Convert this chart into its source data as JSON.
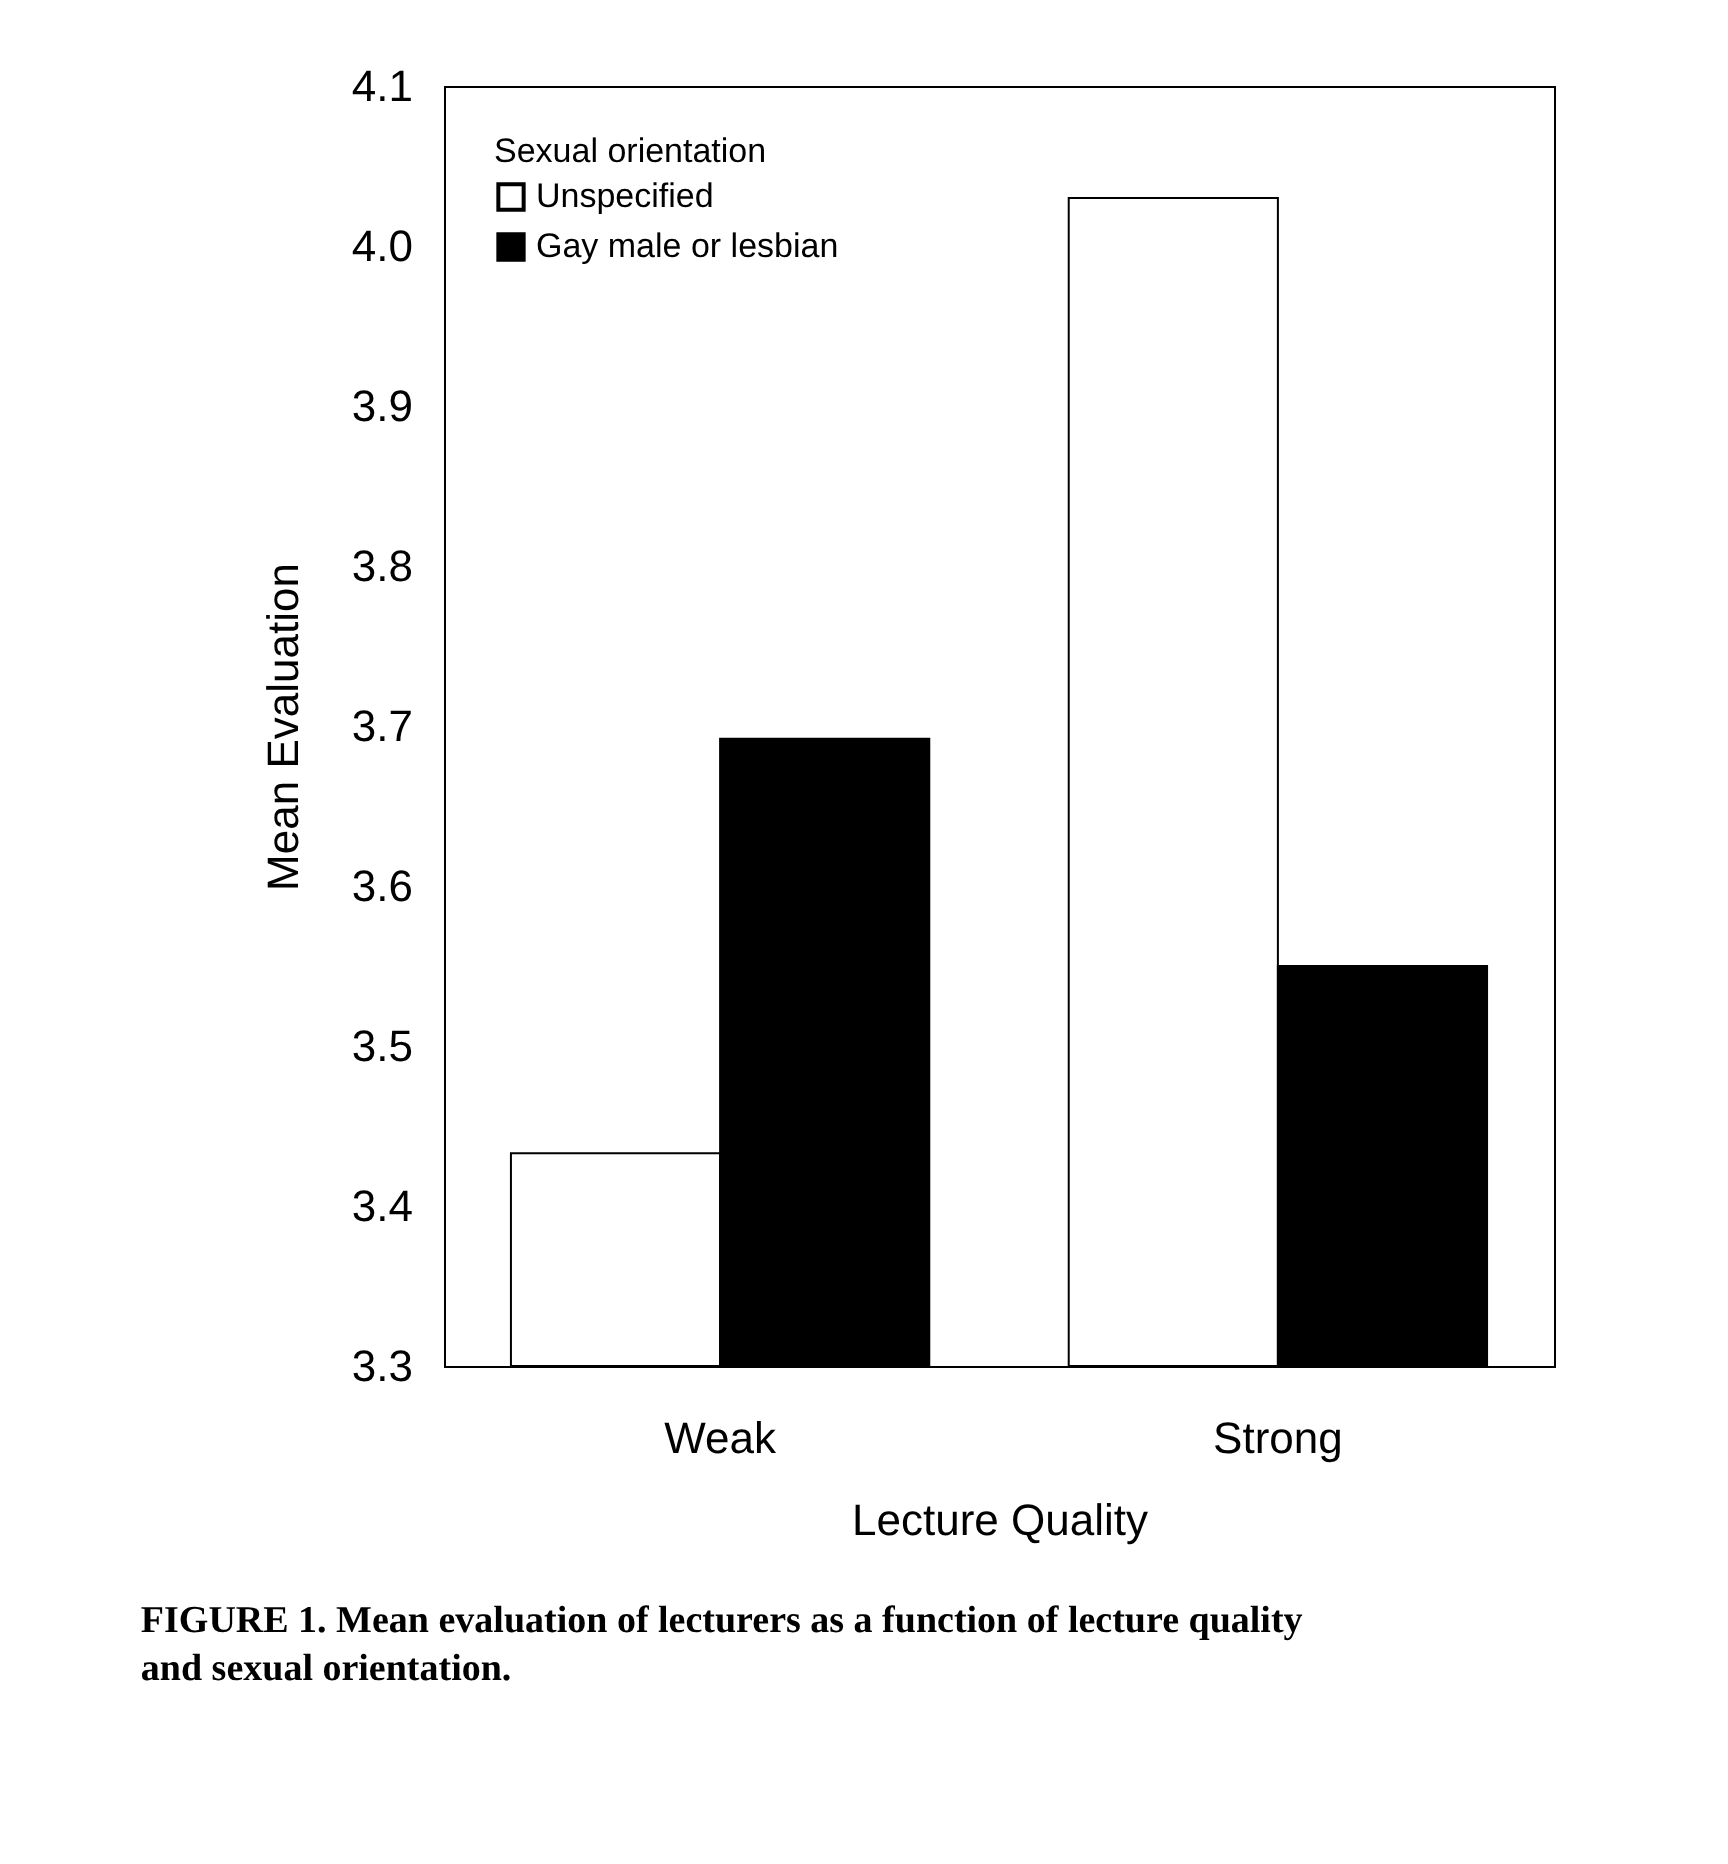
{
  "chart_data": {
    "type": "bar",
    "xlabel": "Lecture Quality",
    "ylabel": "Mean Evaluation",
    "legend_title": "Sexual orientation",
    "categories": [
      "Weak",
      "Strong"
    ],
    "series": [
      {
        "name": "Unspecified",
        "color": "#ffffff",
        "values": [
          3.433,
          4.03
        ]
      },
      {
        "name": "Gay male or lesbian",
        "color": "#000000",
        "values": [
          3.692,
          3.55
        ]
      }
    ],
    "ylim": [
      3.3,
      4.1
    ],
    "yticks": [
      3.3,
      3.4,
      3.5,
      3.6,
      3.7,
      3.8,
      3.9,
      {
        "value": 4.0,
        "label": "4.0"
      },
      4.1
    ],
    "grid": false,
    "legend": "top left",
    "annotations": [
      "FIGURE 1.  Mean evaluation of lecturers as a function of lecture quality and sexual orientation."
    ]
  }
}
